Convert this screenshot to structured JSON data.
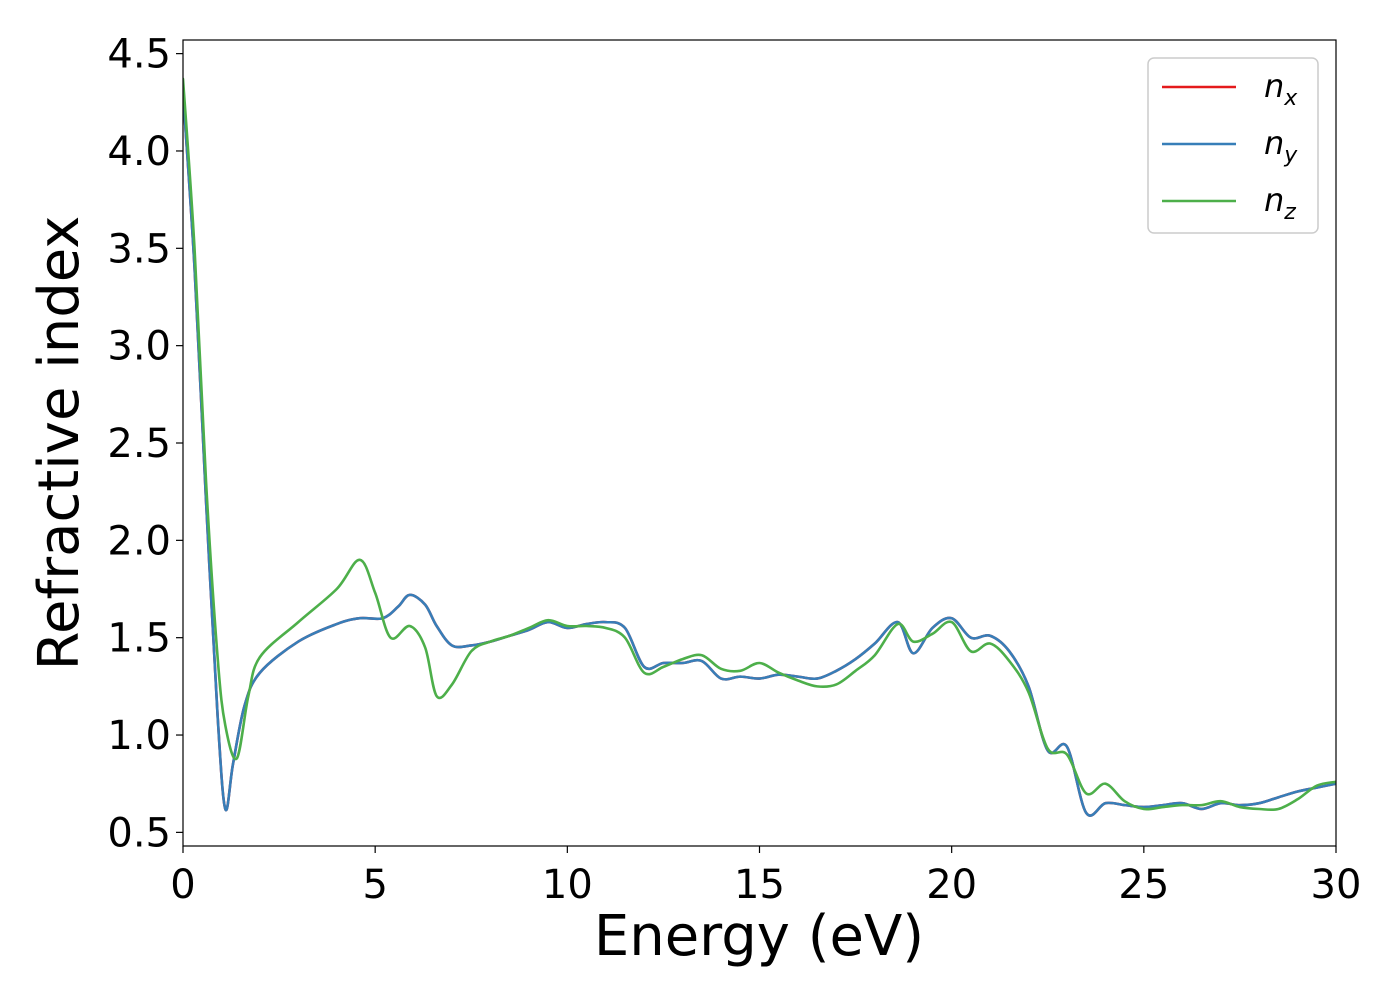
{
  "chart_data": {
    "type": "line",
    "title": "",
    "xlabel": "Energy (eV)",
    "ylabel": "Refractive index",
    "xlim": [
      0,
      30
    ],
    "ylim": [
      0.43,
      4.57
    ],
    "xticks": [
      0,
      5,
      10,
      15,
      20,
      25,
      30
    ],
    "xtick_labels": [
      "0",
      "5",
      "10",
      "15",
      "20",
      "25",
      "30"
    ],
    "yticks": [
      0.5,
      1.0,
      1.5,
      2.0,
      2.5,
      3.0,
      3.5,
      4.0,
      4.5
    ],
    "ytick_labels": [
      "0.5",
      "1.0",
      "1.5",
      "2.0",
      "2.5",
      "3.0",
      "3.5",
      "4.0",
      "4.5"
    ],
    "grid": false,
    "legend_position": "top-right",
    "series": [
      {
        "name": "n_x",
        "legend_base": "n",
        "legend_sub": "x",
        "color": "#e41a1c",
        "x": [
          0,
          0.3,
          0.6,
          0.9,
          1.1,
          1.3,
          1.6,
          2.0,
          3.0,
          4.0,
          4.6,
          5.2,
          5.6,
          5.9,
          6.3,
          6.6,
          7.0,
          7.5,
          8.0,
          8.5,
          9.0,
          9.5,
          10.0,
          10.5,
          11.0,
          11.5,
          12.0,
          12.5,
          13.0,
          13.5,
          14.0,
          14.5,
          15.0,
          15.5,
          16.0,
          16.5,
          17.0,
          17.5,
          18.0,
          18.6,
          19.0,
          19.5,
          20.0,
          20.5,
          21.0,
          21.5,
          22.0,
          22.5,
          23.0,
          23.5,
          24.0,
          24.5,
          25.0,
          25.5,
          26.0,
          26.5,
          27.0,
          27.5,
          28.0,
          28.5,
          29.0,
          29.5,
          30.0
        ],
        "y": [
          4.3,
          3.4,
          2.2,
          1.1,
          0.62,
          0.85,
          1.15,
          1.32,
          1.48,
          1.57,
          1.6,
          1.6,
          1.66,
          1.72,
          1.67,
          1.56,
          1.46,
          1.46,
          1.48,
          1.51,
          1.54,
          1.58,
          1.55,
          1.57,
          1.58,
          1.55,
          1.35,
          1.37,
          1.37,
          1.38,
          1.29,
          1.3,
          1.29,
          1.31,
          1.3,
          1.29,
          1.33,
          1.39,
          1.47,
          1.58,
          1.42,
          1.55,
          1.6,
          1.5,
          1.51,
          1.43,
          1.25,
          0.92,
          0.94,
          0.6,
          0.65,
          0.64,
          0.63,
          0.64,
          0.65,
          0.62,
          0.65,
          0.64,
          0.65,
          0.68,
          0.71,
          0.73,
          0.75
        ]
      },
      {
        "name": "n_y",
        "legend_base": "n",
        "legend_sub": "y",
        "color": "#377eb8",
        "x": [
          0,
          0.3,
          0.6,
          0.9,
          1.1,
          1.3,
          1.6,
          2.0,
          3.0,
          4.0,
          4.6,
          5.2,
          5.6,
          5.9,
          6.3,
          6.6,
          7.0,
          7.5,
          8.0,
          8.5,
          9.0,
          9.5,
          10.0,
          10.5,
          11.0,
          11.5,
          12.0,
          12.5,
          13.0,
          13.5,
          14.0,
          14.5,
          15.0,
          15.5,
          16.0,
          16.5,
          17.0,
          17.5,
          18.0,
          18.6,
          19.0,
          19.5,
          20.0,
          20.5,
          21.0,
          21.5,
          22.0,
          22.5,
          23.0,
          23.5,
          24.0,
          24.5,
          25.0,
          25.5,
          26.0,
          26.5,
          27.0,
          27.5,
          28.0,
          28.5,
          29.0,
          29.5,
          30.0
        ],
        "y": [
          4.3,
          3.4,
          2.2,
          1.1,
          0.62,
          0.85,
          1.15,
          1.32,
          1.48,
          1.57,
          1.6,
          1.6,
          1.66,
          1.72,
          1.67,
          1.56,
          1.46,
          1.46,
          1.48,
          1.51,
          1.54,
          1.58,
          1.55,
          1.57,
          1.58,
          1.55,
          1.35,
          1.37,
          1.37,
          1.38,
          1.29,
          1.3,
          1.29,
          1.31,
          1.3,
          1.29,
          1.33,
          1.39,
          1.47,
          1.58,
          1.42,
          1.55,
          1.6,
          1.5,
          1.51,
          1.43,
          1.25,
          0.92,
          0.94,
          0.6,
          0.65,
          0.64,
          0.63,
          0.64,
          0.65,
          0.62,
          0.65,
          0.64,
          0.65,
          0.68,
          0.71,
          0.73,
          0.75
        ]
      },
      {
        "name": "n_z",
        "legend_base": "n",
        "legend_sub": "z",
        "color": "#4daf4a",
        "x": [
          0,
          0.3,
          0.6,
          0.9,
          1.1,
          1.4,
          1.7,
          2.0,
          3.0,
          4.0,
          4.6,
          5.0,
          5.4,
          5.9,
          6.3,
          6.6,
          7.0,
          7.5,
          8.0,
          8.5,
          9.0,
          9.5,
          10.0,
          10.5,
          11.0,
          11.5,
          12.0,
          12.5,
          13.0,
          13.5,
          14.0,
          14.5,
          15.0,
          15.5,
          16.0,
          16.5,
          17.0,
          17.5,
          18.0,
          18.6,
          19.0,
          19.5,
          20.0,
          20.5,
          21.0,
          21.5,
          22.0,
          22.5,
          23.0,
          23.5,
          24.0,
          24.5,
          25.0,
          25.5,
          26.0,
          26.5,
          27.0,
          27.5,
          28.0,
          28.5,
          29.0,
          29.5,
          30.0
        ],
        "y": [
          4.37,
          3.5,
          2.3,
          1.4,
          1.05,
          0.88,
          1.2,
          1.4,
          1.58,
          1.75,
          1.9,
          1.73,
          1.5,
          1.56,
          1.45,
          1.2,
          1.26,
          1.43,
          1.48,
          1.51,
          1.55,
          1.59,
          1.56,
          1.56,
          1.55,
          1.5,
          1.32,
          1.35,
          1.39,
          1.41,
          1.34,
          1.33,
          1.37,
          1.32,
          1.28,
          1.25,
          1.26,
          1.33,
          1.41,
          1.57,
          1.48,
          1.52,
          1.58,
          1.43,
          1.47,
          1.38,
          1.22,
          0.93,
          0.9,
          0.7,
          0.75,
          0.66,
          0.62,
          0.63,
          0.64,
          0.64,
          0.66,
          0.63,
          0.62,
          0.62,
          0.67,
          0.74,
          0.76
        ]
      }
    ]
  }
}
